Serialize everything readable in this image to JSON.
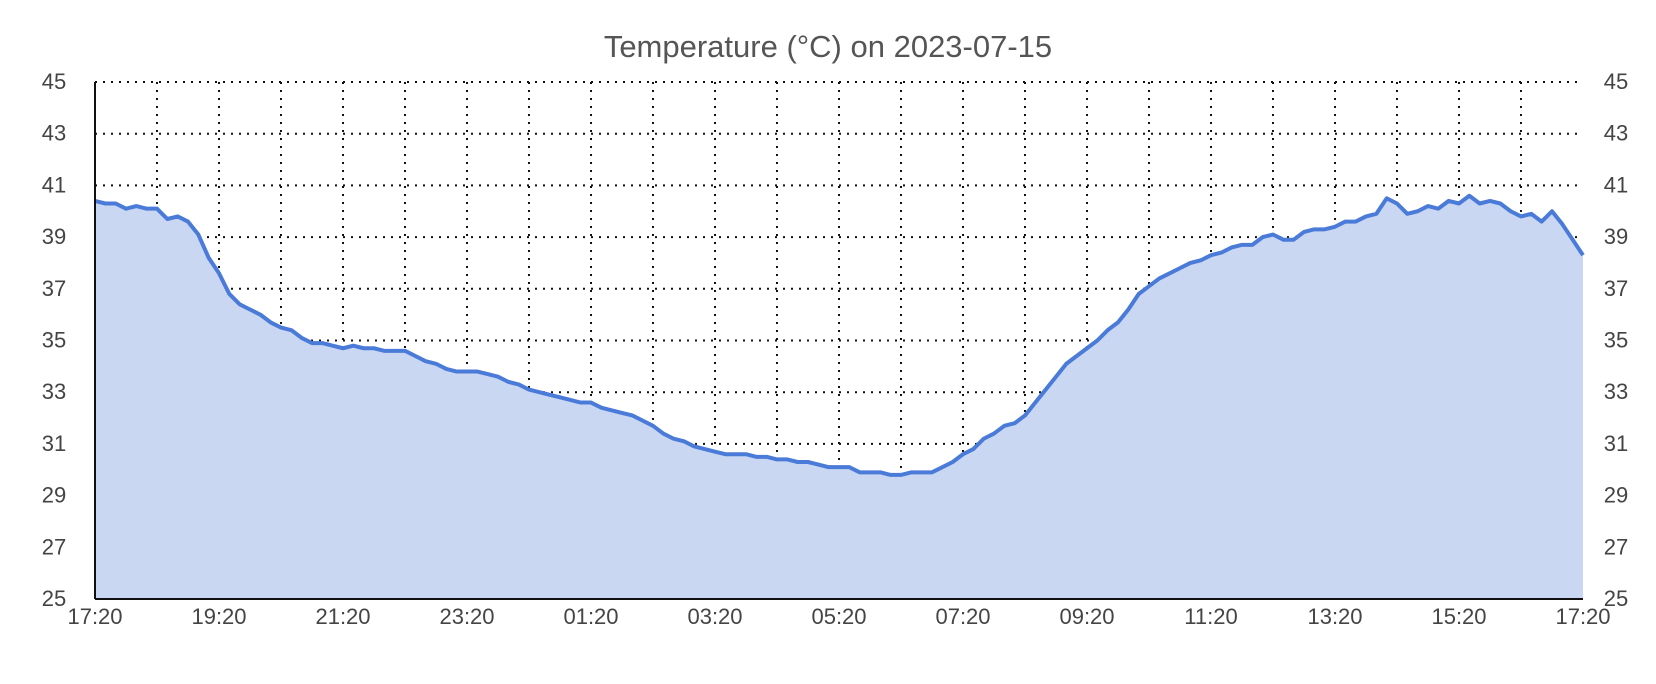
{
  "chart_data": {
    "type": "area",
    "title": "Temperature (°C) on 2023-07-15",
    "xlabel": "",
    "ylabel": "",
    "x_ticks": [
      "17:20",
      "19:20",
      "21:20",
      "23:20",
      "01:20",
      "03:20",
      "05:20",
      "07:20",
      "09:20",
      "11:20",
      "13:20",
      "15:20",
      "17:20"
    ],
    "y_ticks": [
      "25",
      "27",
      "29",
      "31",
      "33",
      "35",
      "37",
      "39",
      "41",
      "43",
      "45"
    ],
    "ylim": [
      25,
      45
    ],
    "grid": true,
    "colors": {
      "line": "#4a7bd8",
      "fill": "#cad7f2",
      "grid": "#111111",
      "axis": "#111111"
    },
    "series": [
      {
        "x": [
          "17:20",
          "17:30",
          "17:40",
          "17:50",
          "18:00",
          "18:10",
          "18:20",
          "18:30",
          "18:40",
          "18:50",
          "19:00",
          "19:10",
          "19:20",
          "19:30",
          "19:40",
          "19:50",
          "20:00",
          "20:10",
          "20:20",
          "20:30",
          "20:40",
          "20:50",
          "21:00",
          "21:10",
          "21:20",
          "21:30",
          "21:40",
          "21:50",
          "22:00",
          "22:10",
          "22:20",
          "22:30",
          "22:40",
          "22:50",
          "23:00",
          "23:10",
          "23:20",
          "23:30",
          "23:40",
          "23:50",
          "00:00",
          "00:10",
          "00:20",
          "00:30",
          "00:40",
          "00:50",
          "01:00",
          "01:10",
          "01:20",
          "01:30",
          "01:40",
          "01:50",
          "02:00",
          "02:10",
          "02:20",
          "02:30",
          "02:40",
          "02:50",
          "03:00",
          "03:10",
          "03:20",
          "03:30",
          "03:40",
          "03:50",
          "04:00",
          "04:10",
          "04:20",
          "04:30",
          "04:40",
          "04:50",
          "05:00",
          "05:10",
          "05:20",
          "05:30",
          "05:40",
          "05:50",
          "06:00",
          "06:10",
          "06:20",
          "06:30",
          "06:40",
          "06:50",
          "07:00",
          "07:10",
          "07:20",
          "07:30",
          "07:40",
          "07:50",
          "08:00",
          "08:10",
          "08:20",
          "08:30",
          "08:40",
          "08:50",
          "09:00",
          "09:10",
          "09:20",
          "09:30",
          "09:40",
          "09:50",
          "10:00",
          "10:10",
          "10:20",
          "10:30",
          "10:40",
          "10:50",
          "11:00",
          "11:10",
          "11:20",
          "11:30",
          "11:40",
          "11:50",
          "12:00",
          "12:10",
          "12:20",
          "12:30",
          "12:40",
          "12:50",
          "13:00",
          "13:10",
          "13:20",
          "13:30",
          "13:40",
          "13:50",
          "14:00",
          "14:10",
          "14:20",
          "14:30",
          "14:40",
          "14:50",
          "15:00",
          "15:10",
          "15:20",
          "15:30",
          "15:40",
          "15:50",
          "16:00",
          "16:10",
          "16:20",
          "16:30",
          "16:40",
          "16:50",
          "17:00",
          "17:10",
          "17:20"
        ],
        "values": [
          40.4,
          40.3,
          40.3,
          40.1,
          40.2,
          40.1,
          40.1,
          39.7,
          39.8,
          39.6,
          39.1,
          38.2,
          37.6,
          36.8,
          36.4,
          36.2,
          36.0,
          35.7,
          35.5,
          35.4,
          35.1,
          34.9,
          34.9,
          34.8,
          34.7,
          34.8,
          34.7,
          34.7,
          34.6,
          34.6,
          34.6,
          34.4,
          34.2,
          34.1,
          33.9,
          33.8,
          33.8,
          33.8,
          33.7,
          33.6,
          33.4,
          33.3,
          33.1,
          33.0,
          32.9,
          32.8,
          32.7,
          32.6,
          32.6,
          32.4,
          32.3,
          32.2,
          32.1,
          31.9,
          31.7,
          31.4,
          31.2,
          31.1,
          30.9,
          30.8,
          30.7,
          30.6,
          30.6,
          30.6,
          30.5,
          30.5,
          30.4,
          30.4,
          30.3,
          30.3,
          30.2,
          30.1,
          30.1,
          30.1,
          29.9,
          29.9,
          29.9,
          29.8,
          29.8,
          29.9,
          29.9,
          29.9,
          30.1,
          30.3,
          30.6,
          30.8,
          31.2,
          31.4,
          31.7,
          31.8,
          32.1,
          32.6,
          33.1,
          33.6,
          34.1,
          34.4,
          34.7,
          35.0,
          35.4,
          35.7,
          36.2,
          36.8,
          37.1,
          37.4,
          37.6,
          37.8,
          38.0,
          38.1,
          38.3,
          38.4,
          38.6,
          38.7,
          38.7,
          39.0,
          39.1,
          38.9,
          38.9,
          39.2,
          39.3,
          39.3,
          39.4,
          39.6,
          39.6,
          39.8,
          39.9,
          40.5,
          40.3,
          39.9,
          40.0,
          40.2,
          40.1,
          40.4,
          40.3,
          40.6,
          40.3,
          40.4,
          40.3,
          40.0,
          39.8,
          39.9,
          39.6,
          40.0,
          39.5,
          38.9,
          38.3
        ]
      }
    ]
  }
}
